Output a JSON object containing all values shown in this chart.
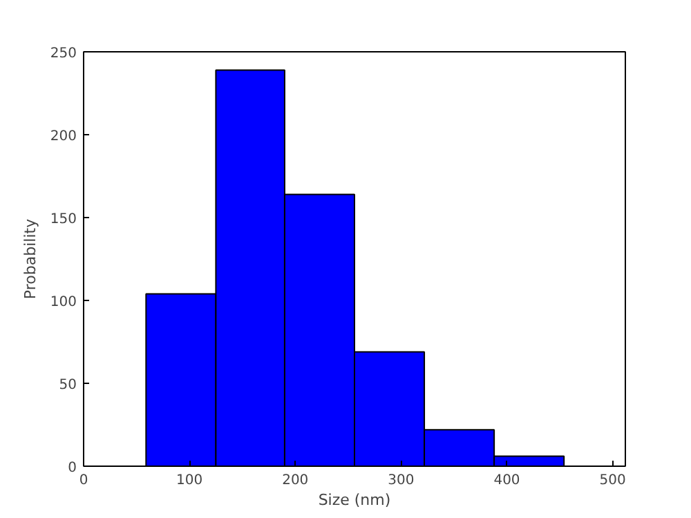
{
  "chart_data": {
    "type": "histogram",
    "xlabel": "Size (nm)",
    "ylabel": "Probability",
    "bins": [
      59,
      125,
      190,
      256,
      322,
      388,
      454
    ],
    "values": [
      104,
      239,
      164,
      69,
      22,
      6
    ],
    "color": "#0000ff",
    "xlim": [
      0,
      512
    ],
    "ylim": [
      0,
      250
    ],
    "xticks": [
      0,
      100,
      200,
      300,
      400,
      500
    ],
    "yticks": [
      0,
      50,
      100,
      150,
      200,
      250
    ],
    "grid": false
  }
}
